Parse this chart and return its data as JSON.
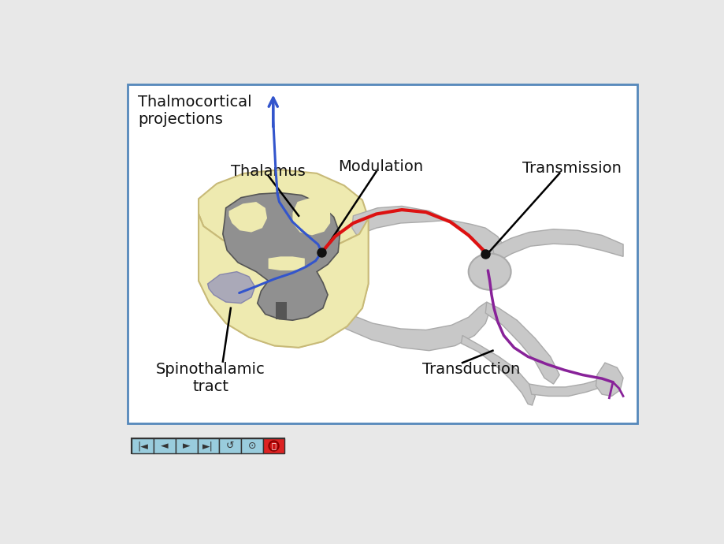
{
  "bg_color": "#e8e8e8",
  "border_color": "#5588bb",
  "main_box_color": "#ffffff",
  "labels": {
    "thalmocortical": "Thalmocortical\nprojections",
    "thalamus": "Thalamus",
    "modulation": "Modulation",
    "transmission": "Transmission",
    "spinothalamic": "Spinothalamic\ntract",
    "transduction": "Transduction"
  },
  "spine_body_color": "#eeeab0",
  "spine_body_dark": "#c8ba78",
  "spine_gray_color": "#909090",
  "nerve_gray_color": "#c8c8c8",
  "nerve_gray_dark": "#aaaaaa",
  "blue_line_color": "#3355cc",
  "red_line_color": "#dd1111",
  "purple_line_color": "#882299",
  "arrow_color": "#3355cc",
  "dot_color": "#111111",
  "text_color": "#111111",
  "nav_bg": "#99ccdd",
  "nav_btn_last_bg": "#dd2222"
}
